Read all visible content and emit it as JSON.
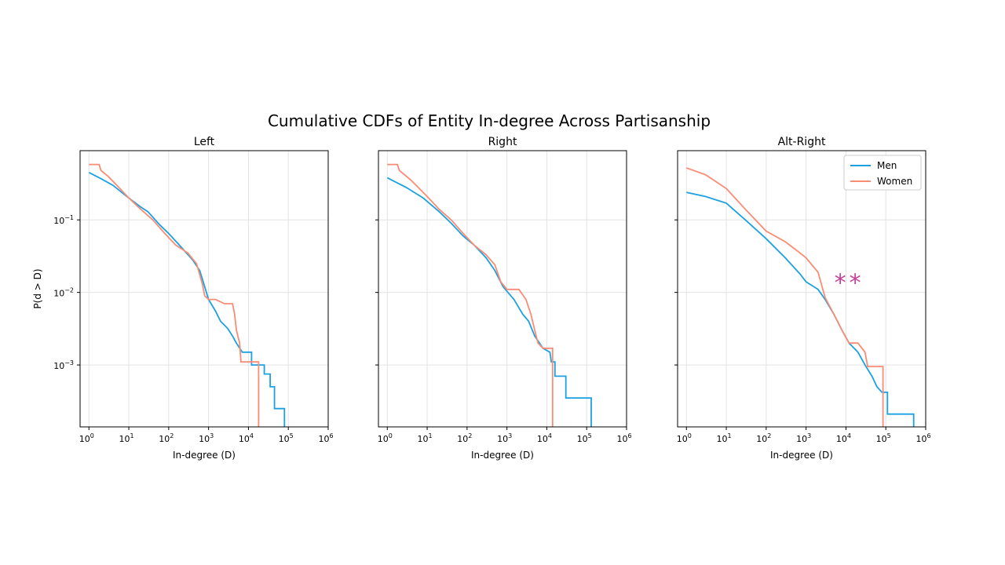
{
  "chart_data": {
    "type": "line",
    "title": "Cumulative CDFs of Entity In-degree Across Partisanship",
    "xscale": "log",
    "yscale": "log",
    "xlim": [
      0.6,
      1000000
    ],
    "ylim": [
      0.00014,
      0.9
    ],
    "x_ticks": [
      {
        "value": 1,
        "base": "10",
        "exp": "0"
      },
      {
        "value": 10,
        "base": "10",
        "exp": "1"
      },
      {
        "value": 100,
        "base": "10",
        "exp": "2"
      },
      {
        "value": 1000,
        "base": "10",
        "exp": "3"
      },
      {
        "value": 10000,
        "base": "10",
        "exp": "4"
      },
      {
        "value": 100000,
        "base": "10",
        "exp": "5"
      },
      {
        "value": 1000000,
        "base": "10",
        "exp": "6"
      }
    ],
    "y_ticks": [
      {
        "value": 0.1,
        "base": "10",
        "exp": "−1"
      },
      {
        "value": 0.01,
        "base": "10",
        "exp": "−2"
      },
      {
        "value": 0.001,
        "base": "10",
        "exp": "−3"
      }
    ],
    "xlabel": "In-degree (D)",
    "ylabel": "P(d > D)",
    "legend": {
      "position": "top-right",
      "entries": [
        "Men",
        "Women"
      ]
    },
    "colors": {
      "Men": "#1ba1e2",
      "Women": "#fa8c75"
    },
    "annotation": {
      "text": "**",
      "panel": "Alt-Right",
      "color": "#c2419b"
    },
    "panels": [
      {
        "title": "Left",
        "series": [
          {
            "name": "Men",
            "points": [
              [
                1,
                0.45
              ],
              [
                2,
                0.37
              ],
              [
                4,
                0.3
              ],
              [
                10,
                0.2
              ],
              [
                20,
                0.15
              ],
              [
                30,
                0.13
              ],
              [
                60,
                0.085
              ],
              [
                100,
                0.065
              ],
              [
                200,
                0.043
              ],
              [
                400,
                0.028
              ],
              [
                600,
                0.02
              ],
              [
                800,
                0.012
              ],
              [
                1000,
                0.008
              ],
              [
                1500,
                0.0055
              ],
              [
                2000,
                0.004
              ],
              [
                3000,
                0.0032
              ],
              [
                4000,
                0.0025
              ],
              [
                5000,
                0.002
              ],
              [
                7000,
                0.0015
              ],
              [
                12000,
                0.0015
              ],
              [
                12001,
                0.001
              ],
              [
                25000,
                0.001
              ],
              [
                25001,
                0.00075
              ],
              [
                35000,
                0.00075
              ],
              [
                35001,
                0.0005
              ],
              [
                45000,
                0.0005
              ],
              [
                45001,
                0.00025
              ],
              [
                80000,
                0.00025
              ],
              [
                80001,
                0.00014
              ]
            ]
          },
          {
            "name": "Women",
            "points": [
              [
                1,
                0.58
              ],
              [
                1.8,
                0.58
              ],
              [
                2,
                0.48
              ],
              [
                3,
                0.4
              ],
              [
                5,
                0.3
              ],
              [
                10,
                0.2
              ],
              [
                20,
                0.14
              ],
              [
                40,
                0.1
              ],
              [
                80,
                0.065
              ],
              [
                150,
                0.045
              ],
              [
                300,
                0.035
              ],
              [
                500,
                0.025
              ],
              [
                700,
                0.013
              ],
              [
                800,
                0.009
              ],
              [
                1000,
                0.008
              ],
              [
                1500,
                0.008
              ],
              [
                2500,
                0.007
              ],
              [
                4000,
                0.007
              ],
              [
                4500,
                0.005
              ],
              [
                5000,
                0.003
              ],
              [
                6000,
                0.002
              ],
              [
                6500,
                0.0011
              ],
              [
                18000,
                0.0011
              ],
              [
                18001,
                0.00014
              ]
            ]
          }
        ]
      },
      {
        "title": "Right",
        "series": [
          {
            "name": "Men",
            "points": [
              [
                1,
                0.38
              ],
              [
                3,
                0.28
              ],
              [
                8,
                0.2
              ],
              [
                20,
                0.13
              ],
              [
                40,
                0.09
              ],
              [
                80,
                0.06
              ],
              [
                150,
                0.045
              ],
              [
                300,
                0.03
              ],
              [
                500,
                0.02
              ],
              [
                800,
                0.012
              ],
              [
                1500,
                0.008
              ],
              [
                2500,
                0.005
              ],
              [
                3500,
                0.004
              ],
              [
                5000,
                0.0025
              ],
              [
                8000,
                0.0017
              ],
              [
                12000,
                0.0015
              ],
              [
                13000,
                0.0011
              ],
              [
                16000,
                0.0011
              ],
              [
                16001,
                0.0007
              ],
              [
                30000,
                0.0007
              ],
              [
                30001,
                0.00035
              ],
              [
                130000,
                0.00035
              ],
              [
                130001,
                0.00014
              ]
            ]
          },
          {
            "name": "Women",
            "points": [
              [
                1,
                0.58
              ],
              [
                1.8,
                0.58
              ],
              [
                2,
                0.48
              ],
              [
                4,
                0.35
              ],
              [
                10,
                0.21
              ],
              [
                20,
                0.14
              ],
              [
                40,
                0.1
              ],
              [
                80,
                0.065
              ],
              [
                150,
                0.045
              ],
              [
                300,
                0.033
              ],
              [
                500,
                0.024
              ],
              [
                700,
                0.014
              ],
              [
                1000,
                0.011
              ],
              [
                2000,
                0.011
              ],
              [
                3000,
                0.008
              ],
              [
                4000,
                0.005
              ],
              [
                5000,
                0.003
              ],
              [
                6000,
                0.002
              ],
              [
                8000,
                0.0017
              ],
              [
                12000,
                0.0017
              ],
              [
                14000,
                0.0017
              ],
              [
                14001,
                0.00014
              ]
            ]
          }
        ]
      },
      {
        "title": "Alt-Right",
        "series": [
          {
            "name": "Men",
            "points": [
              [
                1,
                0.24
              ],
              [
                3,
                0.21
              ],
              [
                10,
                0.17
              ],
              [
                30,
                0.1
              ],
              [
                100,
                0.055
              ],
              [
                300,
                0.03
              ],
              [
                700,
                0.018
              ],
              [
                1000,
                0.014
              ],
              [
                2000,
                0.011
              ],
              [
                3000,
                0.008
              ],
              [
                5000,
                0.005
              ],
              [
                8000,
                0.003
              ],
              [
                12000,
                0.002
              ],
              [
                20000,
                0.0015
              ],
              [
                30000,
                0.001
              ],
              [
                45000,
                0.0007
              ],
              [
                60000,
                0.0005
              ],
              [
                80000,
                0.00042
              ],
              [
                110000,
                0.00042
              ],
              [
                110001,
                0.00021
              ],
              [
                500000,
                0.00021
              ],
              [
                500001,
                0.00014
              ]
            ]
          },
          {
            "name": "Women",
            "points": [
              [
                1,
                0.52
              ],
              [
                3,
                0.42
              ],
              [
                10,
                0.27
              ],
              [
                30,
                0.14
              ],
              [
                100,
                0.07
              ],
              [
                300,
                0.05
              ],
              [
                700,
                0.035
              ],
              [
                1000,
                0.03
              ],
              [
                2000,
                0.019
              ],
              [
                3000,
                0.0085
              ],
              [
                5000,
                0.005
              ],
              [
                8000,
                0.003
              ],
              [
                12000,
                0.002
              ],
              [
                20000,
                0.002
              ],
              [
                30000,
                0.0015
              ],
              [
                35000,
                0.00095
              ],
              [
                85000,
                0.00095
              ],
              [
                85001,
                0.00014
              ]
            ]
          }
        ]
      }
    ]
  }
}
